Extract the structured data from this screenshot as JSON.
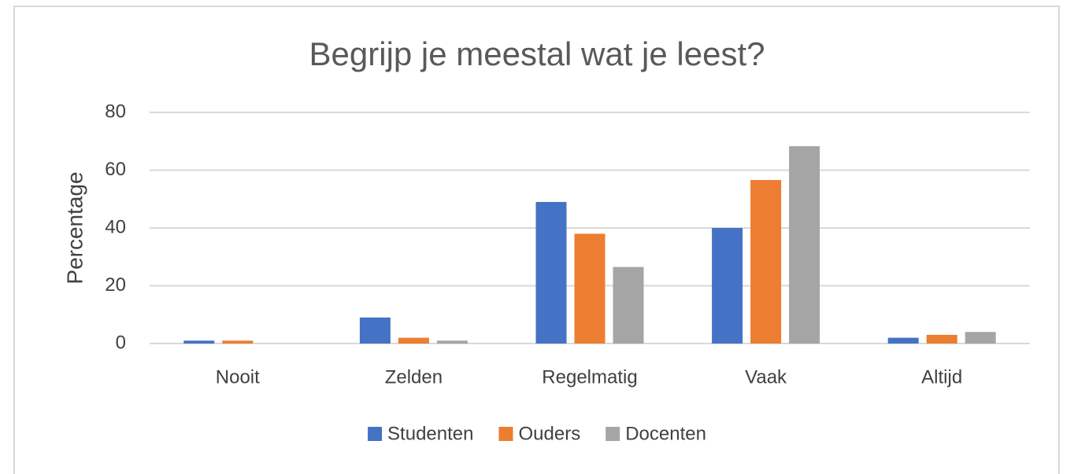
{
  "chart_data": {
    "type": "bar",
    "title": "Begrijp je meestal wat je leest?",
    "y_label": "Percentage",
    "categories": [
      "Nooit",
      "Zelden",
      "Regelmatig",
      "Vaak",
      "Altijd"
    ],
    "series": [
      {
        "name": "Studenten",
        "color": "#4472c4",
        "values": [
          1,
          9,
          49,
          40,
          2
        ]
      },
      {
        "name": "Ouders",
        "color": "#ed7d31",
        "values": [
          1,
          2,
          38,
          56.6,
          3
        ]
      },
      {
        "name": "Docenten",
        "color": "#a5a5a5",
        "values": [
          0,
          1,
          26.5,
          68.3,
          4
        ]
      }
    ],
    "ylim": [
      0,
      80
    ],
    "yticks": [
      0,
      20,
      40,
      60,
      80
    ],
    "grid": true,
    "legend": "bottom"
  }
}
